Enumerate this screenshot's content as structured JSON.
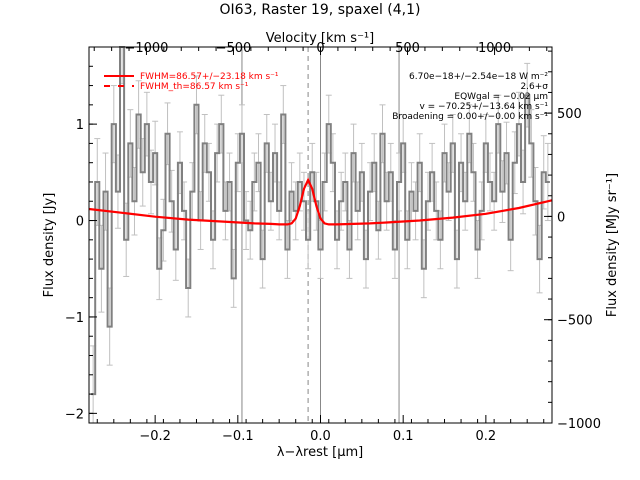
{
  "chart_data": {
    "type": "line",
    "title": "OI63, Raster 19, spaxel (4,1)",
    "xlabel": "λ−λrest [μm]",
    "ylabel": "Flux density [Jy]",
    "top_xlabel": "Velocity [km s⁻¹]",
    "right_ylabel": "Flux density [MJy sr⁻¹]",
    "xlim": [
      -0.28,
      0.28
    ],
    "ylim": [
      -2.1,
      1.8
    ],
    "xticks": [
      -0.2,
      -0.1,
      0.0,
      0.1,
      0.2
    ],
    "xtick_labels": [
      "−0.2",
      "−0.1",
      "0.0",
      "0.1",
      "0.2"
    ],
    "yticks": [
      -2,
      -1,
      0,
      1
    ],
    "ytick_labels": [
      "−2",
      "−1",
      "0",
      "1"
    ],
    "top_xlim": [
      -1330,
      1330
    ],
    "top_xticks": [
      -1000,
      -500,
      0,
      500,
      1000
    ],
    "top_xtick_labels": [
      "−1000",
      "−500",
      "0",
      "500",
      "1000"
    ],
    "right_ylim": [
      -1000,
      820
    ],
    "right_yticks": [
      -1000,
      -500,
      0,
      500
    ],
    "right_ytick_labels": [
      "−1000",
      "−500",
      "0",
      "500"
    ],
    "vertical_lines": [
      -0.095,
      0.0,
      0.095
    ],
    "dashed_line_x": -0.015,
    "legend": {
      "placement": "top-left",
      "entries": [
        {
          "text": "FWHM=86.57+/−23.18 km s⁻¹",
          "style": "solid"
        },
        {
          "text": "FWHM_th=86.57 km s⁻¹",
          "style": "dashed"
        }
      ]
    },
    "annotations": [
      "6.70e−18+/−2.54e−18 W m⁻²",
      "2.6+σ",
      "EQWgal = −0.02 μm",
      "v = −70.25+/−13.64 km s⁻¹",
      "Broadening = 0.00+/−0.00 km s⁻¹"
    ],
    "series": [
      {
        "kind": "step",
        "color": "#808080",
        "error_color": "#c0c0c0",
        "x": [
          -0.275,
          -0.27,
          -0.265,
          -0.26,
          -0.255,
          -0.25,
          -0.245,
          -0.24,
          -0.235,
          -0.23,
          -0.225,
          -0.22,
          -0.215,
          -0.21,
          -0.205,
          -0.2,
          -0.195,
          -0.19,
          -0.185,
          -0.18,
          -0.175,
          -0.17,
          -0.165,
          -0.16,
          -0.155,
          -0.15,
          -0.145,
          -0.14,
          -0.135,
          -0.13,
          -0.125,
          -0.12,
          -0.115,
          -0.11,
          -0.105,
          -0.1,
          -0.095,
          -0.09,
          -0.085,
          -0.08,
          -0.075,
          -0.07,
          -0.065,
          -0.06,
          -0.055,
          -0.05,
          -0.045,
          -0.04,
          -0.035,
          -0.03,
          -0.025,
          -0.02,
          -0.015,
          -0.01,
          -0.005,
          0.0,
          0.005,
          0.01,
          0.015,
          0.02,
          0.025,
          0.03,
          0.035,
          0.04,
          0.045,
          0.05,
          0.055,
          0.06,
          0.065,
          0.07,
          0.075,
          0.08,
          0.085,
          0.09,
          0.095,
          0.1,
          0.105,
          0.11,
          0.115,
          0.12,
          0.125,
          0.13,
          0.135,
          0.14,
          0.145,
          0.15,
          0.155,
          0.16,
          0.165,
          0.17,
          0.175,
          0.18,
          0.185,
          0.19,
          0.195,
          0.2,
          0.205,
          0.21,
          0.215,
          0.22,
          0.225,
          0.23,
          0.235,
          0.24,
          0.245,
          0.25,
          0.255,
          0.26,
          0.265,
          0.27,
          0.275
        ],
        "y": [
          -1.8,
          0.4,
          -0.5,
          0.3,
          -1.1,
          1.0,
          0.3,
          1.8,
          -0.2,
          0.8,
          0.2,
          1.1,
          0.5,
          1.0,
          0.4,
          0.7,
          -0.5,
          -0.1,
          0.9,
          0.2,
          -0.3,
          0.6,
          0.1,
          -0.7,
          0.3,
          1.2,
          0.0,
          0.8,
          0.5,
          -0.2,
          0.7,
          1.0,
          0.1,
          0.4,
          -0.6,
          0.6,
          0.9,
          0.0,
          -0.1,
          0.4,
          0.6,
          -0.4,
          0.8,
          0.2,
          0.7,
          0.1,
          1.1,
          -0.3,
          0.3,
          0.1,
          0.4,
          0.2,
          -0.2,
          0.5,
          0.2,
          -0.3,
          0.4,
          1.0,
          0.6,
          -0.2,
          0.2,
          0.4,
          -0.3,
          0.7,
          0.1,
          0.5,
          -0.4,
          0.3,
          0.6,
          -0.1,
          0.9,
          0.2,
          0.5,
          -0.3,
          0.4,
          0.8,
          -0.2,
          0.3,
          0.1,
          0.6,
          -0.5,
          0.2,
          0.5,
          0.1,
          -0.2,
          0.7,
          0.3,
          0.8,
          -0.4,
          0.6,
          0.2,
          0.9,
          0.5,
          -0.3,
          0.1,
          0.8,
          0.4,
          0.2,
          1.0,
          0.3,
          0.7,
          -0.2,
          0.6,
          1.0,
          0.4,
          1.3,
          0.8,
          0.2,
          -0.4,
          0.5,
          0.4
        ],
        "err": [
          0.5,
          0.45,
          0.45,
          0.4,
          0.4,
          0.4,
          0.38,
          0.38,
          0.38,
          0.35,
          0.35,
          0.35,
          0.35,
          0.33,
          0.33,
          0.33,
          0.32,
          0.32,
          0.32,
          0.32,
          0.32,
          0.32,
          0.3,
          0.3,
          0.3,
          0.3,
          0.3,
          0.3,
          0.3,
          0.3,
          0.3,
          0.3,
          0.3,
          0.3,
          0.3,
          0.3,
          0.3,
          0.3,
          0.3,
          0.3,
          0.3,
          0.3,
          0.3,
          0.3,
          0.3,
          0.3,
          0.3,
          0.3,
          0.3,
          0.3,
          0.3,
          0.3,
          0.3,
          0.3,
          0.3,
          0.3,
          0.3,
          0.3,
          0.3,
          0.3,
          0.3,
          0.3,
          0.3,
          0.3,
          0.3,
          0.3,
          0.3,
          0.3,
          0.3,
          0.3,
          0.3,
          0.3,
          0.3,
          0.3,
          0.3,
          0.3,
          0.3,
          0.3,
          0.3,
          0.3,
          0.3,
          0.3,
          0.3,
          0.3,
          0.3,
          0.3,
          0.3,
          0.3,
          0.3,
          0.3,
          0.3,
          0.3,
          0.3,
          0.3,
          0.3,
          0.3,
          0.3,
          0.3,
          0.3,
          0.32,
          0.32,
          0.32,
          0.32,
          0.33,
          0.33,
          0.33,
          0.35,
          0.35,
          0.35,
          0.38,
          0.4
        ]
      },
      {
        "kind": "line",
        "color": "#ff0000",
        "x": [
          -0.28,
          -0.24,
          -0.2,
          -0.16,
          -0.12,
          -0.08,
          -0.06,
          -0.05,
          -0.04,
          -0.035,
          -0.03,
          -0.025,
          -0.02,
          -0.015,
          -0.01,
          -0.005,
          0.0,
          0.005,
          0.01,
          0.015,
          0.02,
          0.04,
          0.06,
          0.08,
          0.12,
          0.16,
          0.2,
          0.24,
          0.28
        ],
        "y": [
          0.12,
          0.08,
          0.04,
          0.01,
          -0.01,
          -0.03,
          -0.035,
          -0.04,
          -0.04,
          -0.03,
          0.02,
          0.15,
          0.33,
          0.42,
          0.33,
          0.15,
          0.02,
          -0.03,
          -0.04,
          -0.04,
          -0.04,
          -0.035,
          -0.03,
          -0.02,
          0.0,
          0.03,
          0.07,
          0.13,
          0.21
        ]
      }
    ]
  }
}
